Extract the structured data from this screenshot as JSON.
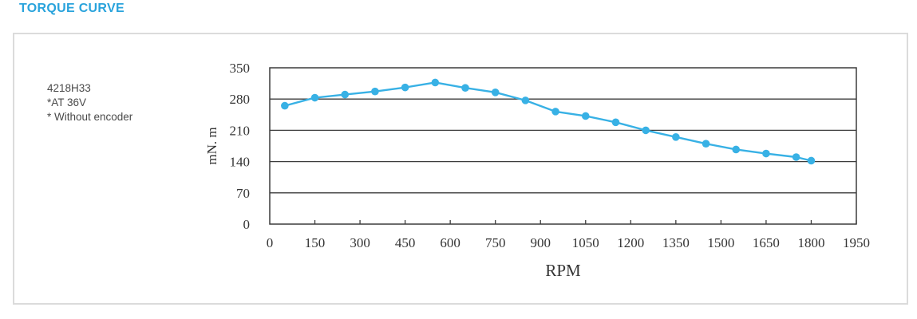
{
  "page": {
    "title": "TORQUE CURVE"
  },
  "panel": {
    "annotation_lines": [
      "4218H33",
      "*AT 36V",
      "* Without encoder"
    ]
  },
  "chart_data": {
    "type": "line",
    "title": "TORQUE CURVE",
    "xlabel": "RPM",
    "ylabel": "mN. m",
    "xlim": [
      0,
      1950
    ],
    "ylim": [
      0,
      350
    ],
    "xticks": [
      0,
      150,
      300,
      450,
      600,
      750,
      900,
      1050,
      1200,
      1350,
      1500,
      1650,
      1800,
      1950
    ],
    "yticks": [
      0,
      70,
      140,
      210,
      280,
      350
    ],
    "grid": "horizontal",
    "legend": "none",
    "series": [
      {
        "name": "torque_mNm",
        "color": "#38B1E5",
        "x": [
          50,
          150,
          250,
          350,
          450,
          550,
          650,
          750,
          850,
          950,
          1050,
          1150,
          1250,
          1350,
          1450,
          1550,
          1650,
          1750,
          1800
        ],
        "y": [
          265,
          283,
          290,
          297,
          306,
          317,
          305,
          295,
          277,
          252,
          242,
          228,
          210,
          195,
          180,
          167,
          158,
          150,
          142
        ]
      }
    ]
  },
  "colors": {
    "title": "#29A3DC",
    "curve": "#38B1E5",
    "axis": "#3C3C3C",
    "tick_text": "#343434",
    "text": "#4A4A4A",
    "panel_border": "#DBDBDB",
    "background": "#FFFFFF"
  }
}
